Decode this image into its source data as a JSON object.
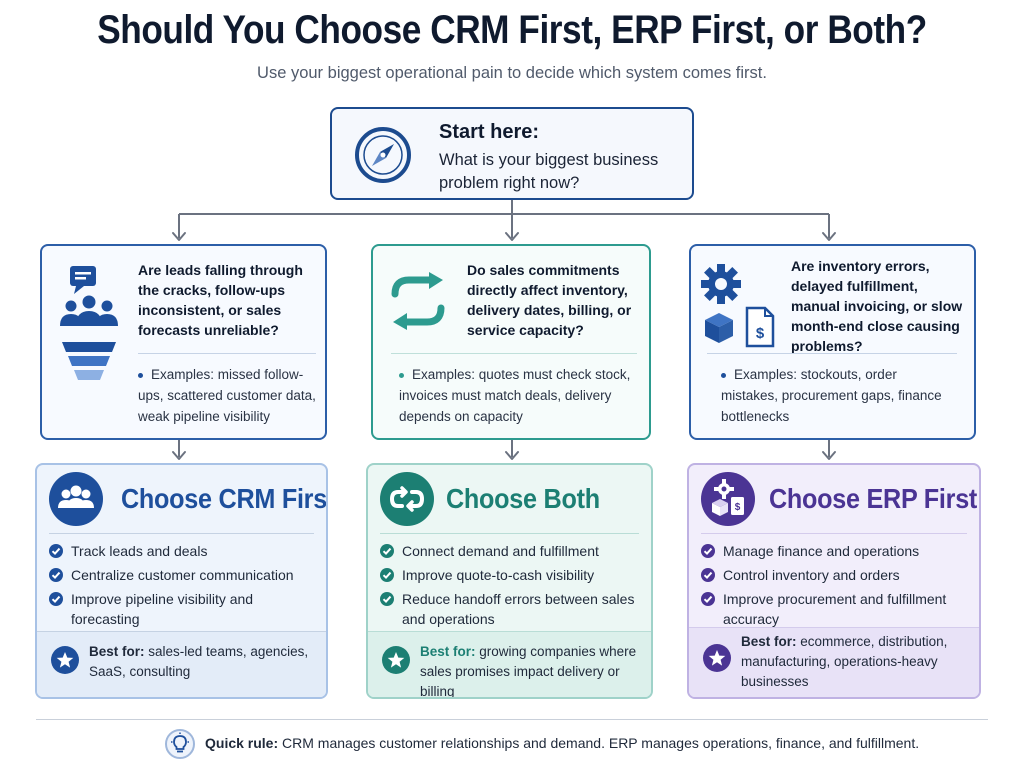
{
  "header": {
    "title": "Should You Choose CRM First, ERP First, or Both?",
    "subtitle": "Use your biggest operational pain to decide which system comes first."
  },
  "start": {
    "title": "Start here:",
    "question": "What is your biggest business problem right now?",
    "icon": "compass-icon"
  },
  "questions": {
    "crm": {
      "text": "Are leads falling through the cracks, follow-ups inconsistent, or sales forecasts unreliable?",
      "examples": "Examples: missed follow-ups, scattered customer data, weak pipeline visibility",
      "icon": "lead-funnel-icon"
    },
    "both": {
      "text": "Do sales commitments directly affect inventory, delivery dates, billing, or service capacity?",
      "examples": "Examples: quotes must check stock, invoices must match deals, delivery depends on capacity",
      "icon": "sync-arrows-icon"
    },
    "erp": {
      "text": "Are inventory errors, delayed fulfillment, manual invoicing, or slow month-end close causing problems?",
      "examples": "Examples: stockouts, order mistakes, procurement gaps, finance bottlenecks",
      "icon": "operations-icon"
    }
  },
  "answers": {
    "crm": {
      "title": "Choose CRM First",
      "checks": [
        "Track leads and deals",
        "Centralize customer communication",
        "Improve pipeline visibility and forecasting"
      ],
      "best_label": "Best for:",
      "best_text": "sales-led teams, agencies, SaaS, consulting",
      "accent": "#1e4f9c"
    },
    "both": {
      "title": "Choose Both",
      "checks": [
        "Connect demand and fulfillment",
        "Improve quote-to-cash visibility",
        "Reduce handoff errors between sales and operations"
      ],
      "best_label": "Best for:",
      "best_text": "growing companies where sales promises impact delivery or billing",
      "accent": "#1c7f73"
    },
    "erp": {
      "title": "Choose ERP First",
      "checks": [
        "Manage finance and operations",
        "Control inventory and orders",
        "Improve procurement and fulfillment accuracy"
      ],
      "best_label": "Best for:",
      "best_text": "ecommerce, distribution, manufacturing, operations-heavy businesses",
      "accent": "#4b3494"
    }
  },
  "rule": {
    "label": "Quick rule:",
    "text": "CRM manages customer relationships and demand. ERP manages operations, finance, and fulfillment.",
    "icon": "lightbulb-icon"
  },
  "colors": {
    "navy": "#1c4b8f",
    "teal": "#2d9b8f",
    "purple": "#4b3494"
  }
}
